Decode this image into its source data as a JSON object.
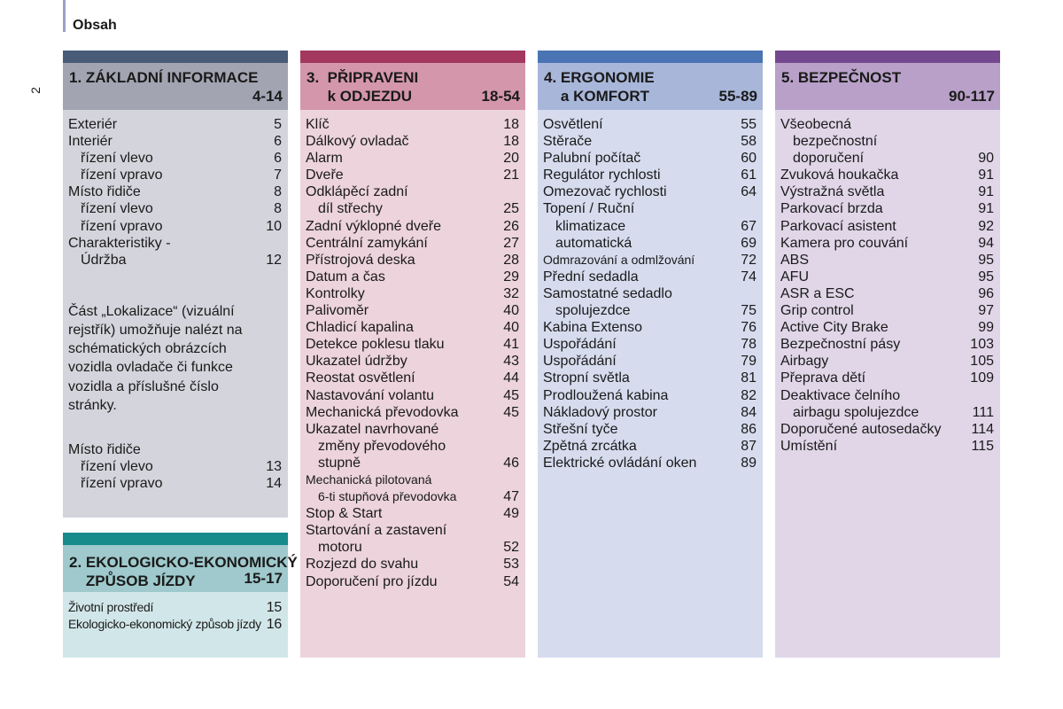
{
  "page": {
    "title": "Obsah",
    "number": "2"
  },
  "sections": [
    {
      "id": "s1",
      "line1": "1. ZÁKLADNÍ INFORMACE",
      "line2": "",
      "range": "4-14",
      "bar": "#485c78",
      "head": "#a3a4b2",
      "bg": "#d4d4dc",
      "entries": [
        {
          "lines": [
            "Exteriér"
          ],
          "page": "5"
        },
        {
          "lines": [
            "Interiér"
          ],
          "page": "6"
        },
        {
          "lines": [
            "řízení vlevo"
          ],
          "page": "6",
          "indent": true
        },
        {
          "lines": [
            "řízení vpravo"
          ],
          "page": "7",
          "indent": true
        },
        {
          "lines": [
            "Místo řidiče"
          ],
          "page": "8"
        },
        {
          "lines": [
            "řízení vlevo"
          ],
          "page": "8",
          "indent": true
        },
        {
          "lines": [
            "řízení vpravo"
          ],
          "page": "10",
          "indent": true
        },
        {
          "lines": [
            "Charakteristiky -",
            "Údržba"
          ],
          "page": "12"
        }
      ],
      "paragraph": [
        "Část „Lokalizace“ (vizuální",
        "rejstřík) umožňuje nalézt na",
        "schématických obrázcích",
        "vozidla ovladače či funkce",
        "vozidla a příslušné číslo",
        "stránky."
      ],
      "entries2": [
        {
          "lines": [
            "Místo řidiče"
          ],
          "page": ""
        },
        {
          "lines": [
            "řízení vlevo"
          ],
          "page": "13",
          "indent": true
        },
        {
          "lines": [
            "řízení vpravo"
          ],
          "page": "14",
          "indent": true
        }
      ]
    },
    {
      "id": "s2",
      "line1": "2. EKOLOGICKO-EKONOMICKÝ",
      "line2": "    ZPŮSOB JÍZDY",
      "range": "15-17",
      "bar": "#178a8c",
      "head": "#9fc9cc",
      "bg": "#d1e6e8",
      "entries": [
        {
          "lines": [
            "Životní prostředí"
          ],
          "page": "15",
          "narrow": true
        },
        {
          "lines": [
            "Ekologicko-ekonomický způsob jízdy"
          ],
          "page": "16",
          "narrow": true
        }
      ]
    },
    {
      "id": "s3",
      "line1": "3.  PŘIPRAVENI",
      "line2": "     k ODJEZDU",
      "range": "18-54",
      "bar": "#a3375e",
      "head": "#d496aa",
      "bg": "#ecd3dc",
      "entries": [
        {
          "lines": [
            "Klíč"
          ],
          "page": "18"
        },
        {
          "lines": [
            "Dálkový ovladač"
          ],
          "page": "18"
        },
        {
          "lines": [
            "Alarm"
          ],
          "page": "20"
        },
        {
          "lines": [
            "Dveře"
          ],
          "page": "21"
        },
        {
          "lines": [
            "Odklápěcí zadní",
            "díl střechy"
          ],
          "page": "25"
        },
        {
          "lines": [
            "Zadní výklopné dveře"
          ],
          "page": "26"
        },
        {
          "lines": [
            "Centrální zamykání"
          ],
          "page": "27"
        },
        {
          "lines": [
            "Přístrojová deska"
          ],
          "page": "28"
        },
        {
          "lines": [
            "Datum a čas"
          ],
          "page": "29"
        },
        {
          "lines": [
            "Kontrolky"
          ],
          "page": "32"
        },
        {
          "lines": [
            "Palivoměr"
          ],
          "page": "40"
        },
        {
          "lines": [
            "Chladicí kapalina"
          ],
          "page": "40"
        },
        {
          "lines": [
            "Detekce poklesu tlaku"
          ],
          "page": "41"
        },
        {
          "lines": [
            "Ukazatel údržby"
          ],
          "page": "43"
        },
        {
          "lines": [
            "Reostat osvětlení"
          ],
          "page": "44"
        },
        {
          "lines": [
            "Nastavování volantu"
          ],
          "page": "45"
        },
        {
          "lines": [
            "Mechanická převodovka"
          ],
          "page": "45"
        },
        {
          "lines": [
            "Ukazatel navrhované",
            "změny převodového",
            "stupně"
          ],
          "page": "46"
        },
        {
          "lines": [
            "Mechanická pilotovaná",
            "6-ti stupňová převodovka"
          ],
          "page": "47",
          "small": true
        },
        {
          "lines": [
            "Stop & Start"
          ],
          "page": "49"
        },
        {
          "lines": [
            "Startování a zastavení",
            "motoru"
          ],
          "page": "52"
        },
        {
          "lines": [
            "Rozjezd do svahu"
          ],
          "page": "53"
        },
        {
          "lines": [
            "Doporučení pro jízdu"
          ],
          "page": "54"
        }
      ]
    },
    {
      "id": "s4",
      "line1": "4. ERGONOMIE",
      "line2": "    a KOMFORT",
      "range": "55-89",
      "bar": "#4a74b4",
      "head": "#a8b6da",
      "bg": "#d6dcee",
      "entries": [
        {
          "lines": [
            "Osvětlení"
          ],
          "page": "55"
        },
        {
          "lines": [
            "Stěrače"
          ],
          "page": "58"
        },
        {
          "lines": [
            "Palubní počítač"
          ],
          "page": "60"
        },
        {
          "lines": [
            "Regulátor rychlosti"
          ],
          "page": "61"
        },
        {
          "lines": [
            "Omezovač rychlosti"
          ],
          "page": "64"
        },
        {
          "lines": [
            "Topení / Ruční",
            "klimatizace",
            "automatická"
          ],
          "page": "67",
          "page2": "69"
        },
        {
          "lines": [
            "Odmrazování a odmlžování"
          ],
          "page": "72",
          "small": true
        },
        {
          "lines": [
            "Přední sedadla"
          ],
          "page": "74"
        },
        {
          "lines": [
            "Samostatné sedadlo",
            "spolujezdce"
          ],
          "page": "75"
        },
        {
          "lines": [
            "Kabina Extenso"
          ],
          "page": "76"
        },
        {
          "lines": [
            "Uspořádání"
          ],
          "page": "78"
        },
        {
          "lines": [
            "Uspořádání"
          ],
          "page": "79"
        },
        {
          "lines": [
            "Stropní světla"
          ],
          "page": "81"
        },
        {
          "lines": [
            "Prodloužená kabina"
          ],
          "page": "82"
        },
        {
          "lines": [
            "Nákladový prostor"
          ],
          "page": "84"
        },
        {
          "lines": [
            "Střešní tyče"
          ],
          "page": "86"
        },
        {
          "lines": [
            "Zpětná zrcátka"
          ],
          "page": "87"
        },
        {
          "lines": [
            "Elektrické ovládání oken"
          ],
          "page": "89"
        }
      ]
    },
    {
      "id": "s5",
      "line1": "5. BEZPEČNOST",
      "line2": "",
      "range": "90-117",
      "bar": "#74488e",
      "head": "#b8a0c8",
      "bg": "#e0d6e8",
      "entries": [
        {
          "lines": [
            "Všeobecná",
            "bezpečnostní",
            "doporučení"
          ],
          "page": "90"
        },
        {
          "lines": [
            "Zvuková houkačka"
          ],
          "page": "91"
        },
        {
          "lines": [
            "Výstražná světla"
          ],
          "page": "91"
        },
        {
          "lines": [
            "Parkovací brzda"
          ],
          "page": "91"
        },
        {
          "lines": [
            "Parkovací asistent"
          ],
          "page": "92"
        },
        {
          "lines": [
            "Kamera pro couvání"
          ],
          "page": "94"
        },
        {
          "lines": [
            "ABS"
          ],
          "page": "95"
        },
        {
          "lines": [
            "AFU"
          ],
          "page": "95"
        },
        {
          "lines": [
            "ASR a ESC"
          ],
          "page": "96"
        },
        {
          "lines": [
            "Grip control"
          ],
          "page": "97"
        },
        {
          "lines": [
            "Active City Brake"
          ],
          "page": "99"
        },
        {
          "lines": [
            "Bezpečnostní pásy"
          ],
          "page": "103"
        },
        {
          "lines": [
            "Airbagy"
          ],
          "page": "105"
        },
        {
          "lines": [
            "Přeprava dětí"
          ],
          "page": "109"
        },
        {
          "lines": [
            "Deaktivace čelního",
            "airbagu spolujezdce"
          ],
          "page": "111"
        },
        {
          "lines": [
            "Doporučené autosedačky"
          ],
          "page": "114"
        },
        {
          "lines": [
            "Umístění"
          ],
          "page": "115"
        }
      ]
    }
  ]
}
